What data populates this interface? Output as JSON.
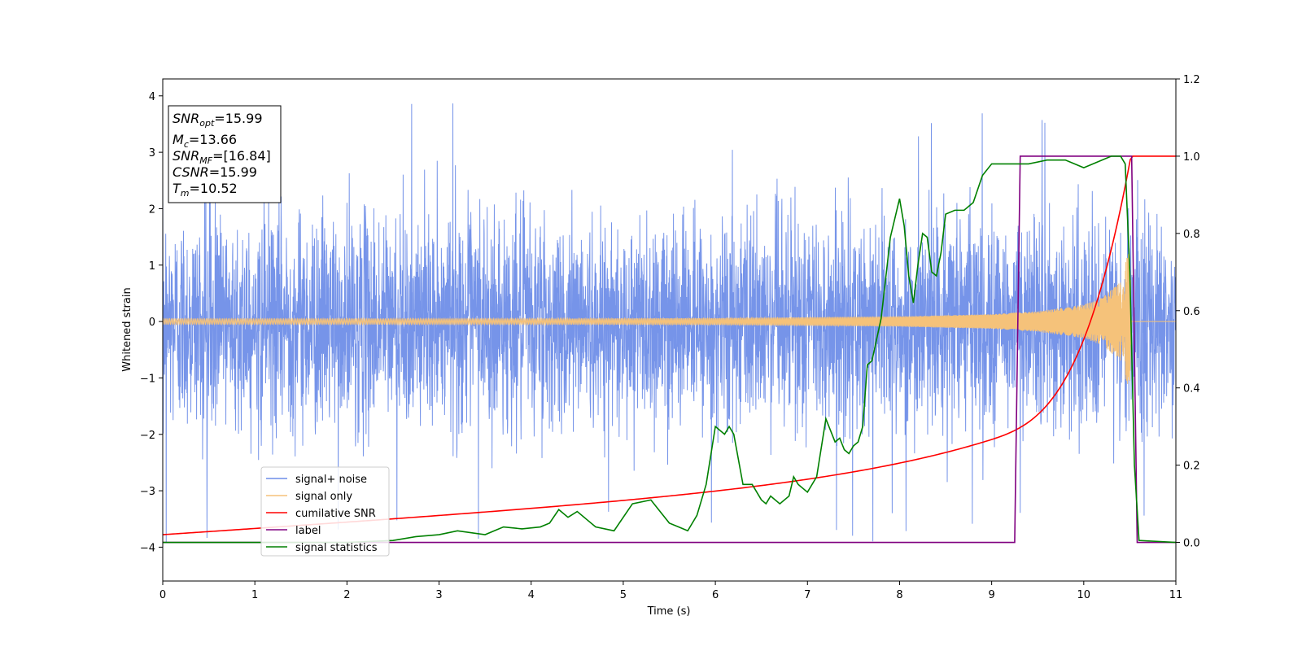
{
  "chart_data": {
    "type": "line",
    "title": "",
    "xlabel": "Time (s)",
    "ylabel": "Whitened strain",
    "xlim": [
      0,
      11
    ],
    "ylim": [
      -4.6,
      4.3
    ],
    "y2lim": [
      -0.1,
      1.2
    ],
    "grid": false,
    "x_ticks": [
      "0",
      "1",
      "2",
      "3",
      "4",
      "5",
      "6",
      "7",
      "8",
      "9",
      "10",
      "11"
    ],
    "y_ticks": [
      "4",
      "3",
      "2",
      "1",
      "0",
      "−1",
      "−2",
      "−3",
      "−4"
    ],
    "y2_ticks": [
      "1.2",
      "1.0",
      "0.8",
      "0.6",
      "0.4",
      "0.2",
      "0.0"
    ],
    "legend_position": "lower-left",
    "stats_box": {
      "snr_opt_sym": "SNR",
      "snr_opt_sub": "opt",
      "snr_opt_val": "=15.99",
      "mc_sym": "M",
      "mc_sub": "c",
      "mc_val": "=13.66",
      "snr_mf_sym": "SNR",
      "snr_mf_sub": "MF",
      "snr_mf_val": "=[16.84]",
      "csnr_sym": "CSNR",
      "csnr_val": "=15.99",
      "tm_sym": "T",
      "tm_sub": "m",
      "tm_val": "=10.52"
    },
    "series": [
      {
        "name": "signal+ noise",
        "color": "#6f8ee8",
        "axis": "left",
        "description_values": {
          "mean": 0.0,
          "std": 0.95,
          "max": 3.9,
          "min": -4.15
        }
      },
      {
        "name": "signal only",
        "color": "#f5c27a",
        "axis": "left",
        "envelope": {
          "t": [
            0,
            2,
            4,
            6,
            8,
            9,
            9.5,
            10,
            10.2,
            10.4,
            10.5,
            10.52
          ],
          "amp": [
            0.05,
            0.05,
            0.05,
            0.06,
            0.09,
            0.13,
            0.18,
            0.3,
            0.42,
            0.7,
            1.35,
            0.0
          ]
        },
        "merger_time": 10.52
      },
      {
        "name": "cumilative SNR",
        "color": "#ff0000",
        "axis": "right",
        "x": [
          0,
          1,
          2,
          3,
          4,
          5,
          6,
          7,
          7.5,
          8,
          8.5,
          9,
          9.5,
          10,
          10.2,
          10.4,
          10.5,
          10.52,
          11
        ],
        "y": [
          0.02,
          0.045,
          0.07,
          0.095,
          0.12,
          0.145,
          0.175,
          0.21,
          0.23,
          0.255,
          0.285,
          0.32,
          0.37,
          0.5,
          0.6,
          0.78,
          0.95,
          1.0,
          1.0
        ]
      },
      {
        "name": "label",
        "color": "#800080",
        "axis": "right",
        "x": [
          0,
          9.25,
          9.31,
          10.52,
          10.58,
          11
        ],
        "y": [
          0,
          0,
          1,
          1,
          0,
          0
        ]
      },
      {
        "name": "signal statistics",
        "color": "#008000",
        "axis": "right",
        "x": [
          0,
          1,
          2,
          2.5,
          2.75,
          3,
          3.2,
          3.5,
          3.6,
          3.7,
          3.9,
          4.1,
          4.2,
          4.3,
          4.4,
          4.5,
          4.6,
          4.7,
          4.9,
          5.1,
          5.3,
          5.5,
          5.6,
          5.7,
          5.8,
          5.9,
          6.0,
          6.1,
          6.15,
          6.2,
          6.3,
          6.4,
          6.5,
          6.55,
          6.6,
          6.7,
          6.8,
          6.85,
          6.9,
          7.0,
          7.1,
          7.2,
          7.3,
          7.35,
          7.4,
          7.45,
          7.5,
          7.55,
          7.6,
          7.65,
          7.7,
          7.8,
          7.9,
          8.0,
          8.05,
          8.1,
          8.15,
          8.2,
          8.25,
          8.3,
          8.35,
          8.4,
          8.45,
          8.5,
          8.6,
          8.7,
          8.8,
          8.9,
          9.0,
          9.2,
          9.4,
          9.6,
          9.8,
          9.9,
          10.0,
          10.1,
          10.2,
          10.3,
          10.4,
          10.45,
          10.5,
          10.55,
          10.6,
          11
        ],
        "y": [
          0.0,
          0.0,
          0.0,
          0.005,
          0.015,
          0.02,
          0.03,
          0.02,
          0.03,
          0.04,
          0.035,
          0.04,
          0.05,
          0.085,
          0.065,
          0.08,
          0.06,
          0.04,
          0.03,
          0.1,
          0.11,
          0.05,
          0.04,
          0.03,
          0.07,
          0.15,
          0.3,
          0.28,
          0.3,
          0.28,
          0.15,
          0.15,
          0.11,
          0.1,
          0.12,
          0.1,
          0.12,
          0.17,
          0.15,
          0.13,
          0.17,
          0.32,
          0.26,
          0.27,
          0.24,
          0.23,
          0.25,
          0.26,
          0.3,
          0.46,
          0.47,
          0.58,
          0.79,
          0.89,
          0.82,
          0.69,
          0.62,
          0.72,
          0.8,
          0.79,
          0.7,
          0.69,
          0.75,
          0.85,
          0.86,
          0.86,
          0.88,
          0.95,
          0.98,
          0.98,
          0.98,
          0.99,
          0.99,
          0.98,
          0.97,
          0.98,
          0.99,
          1.0,
          1.0,
          0.98,
          0.7,
          0.2,
          0.005,
          0.0
        ]
      }
    ]
  }
}
